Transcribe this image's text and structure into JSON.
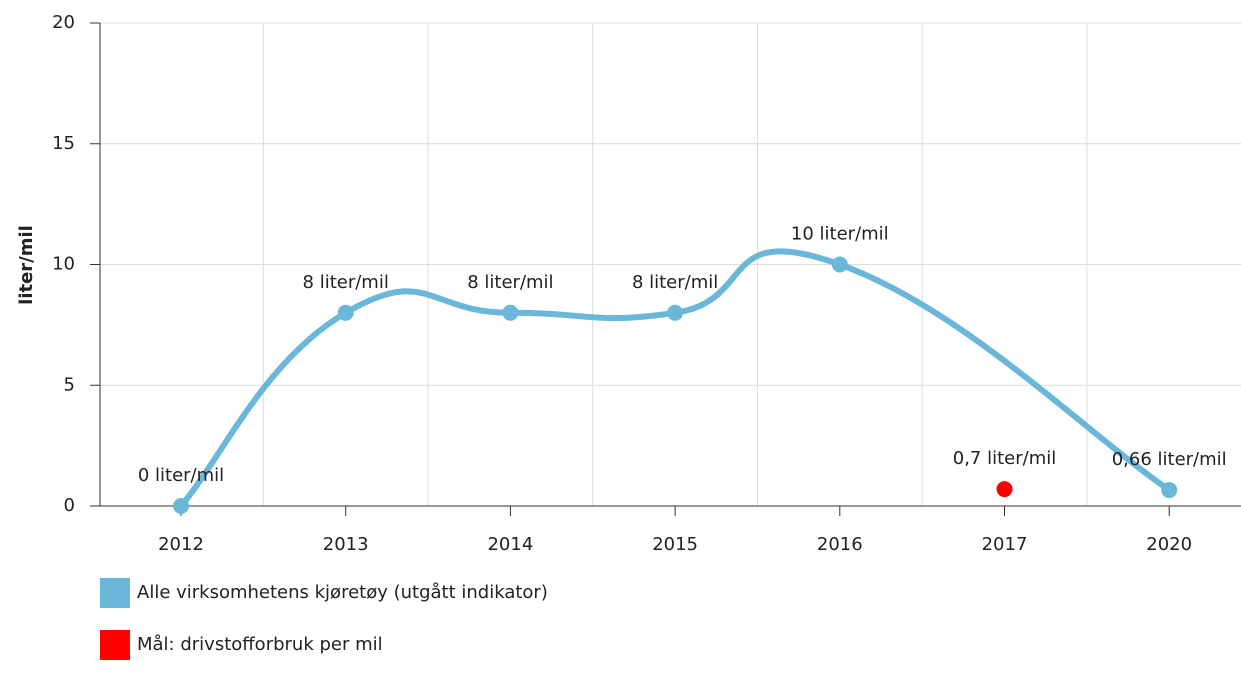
{
  "chart_data": {
    "type": "line",
    "ylabel": "liter/mil",
    "categories": [
      "2012",
      "2013",
      "2014",
      "2015",
      "2016",
      "2017",
      "2020"
    ],
    "series": [
      {
        "name": "Alle virksomhetens kjøretøy (utgått indikator)",
        "color": "#6ab7da",
        "values": [
          0,
          8,
          8,
          8,
          10,
          null,
          0.66
        ],
        "value_labels": [
          "0 liter/mil",
          "8 liter/mil",
          "8 liter/mil",
          "8 liter/mil",
          "10 liter/mil",
          null,
          "0,66 liter/mil"
        ]
      },
      {
        "name": "Mål: drivstofforbruk per mil",
        "color": "#ff0000",
        "values": [
          null,
          null,
          null,
          null,
          null,
          0.7,
          null
        ],
        "value_labels": [
          null,
          null,
          null,
          null,
          null,
          "0,7 liter/mil",
          null
        ]
      }
    ],
    "ylim": [
      0,
      20
    ],
    "yticks": [
      0,
      5,
      10,
      15,
      20
    ],
    "grid": true,
    "smooth": true,
    "connect_nulls": true,
    "legend": "bottom-left"
  }
}
